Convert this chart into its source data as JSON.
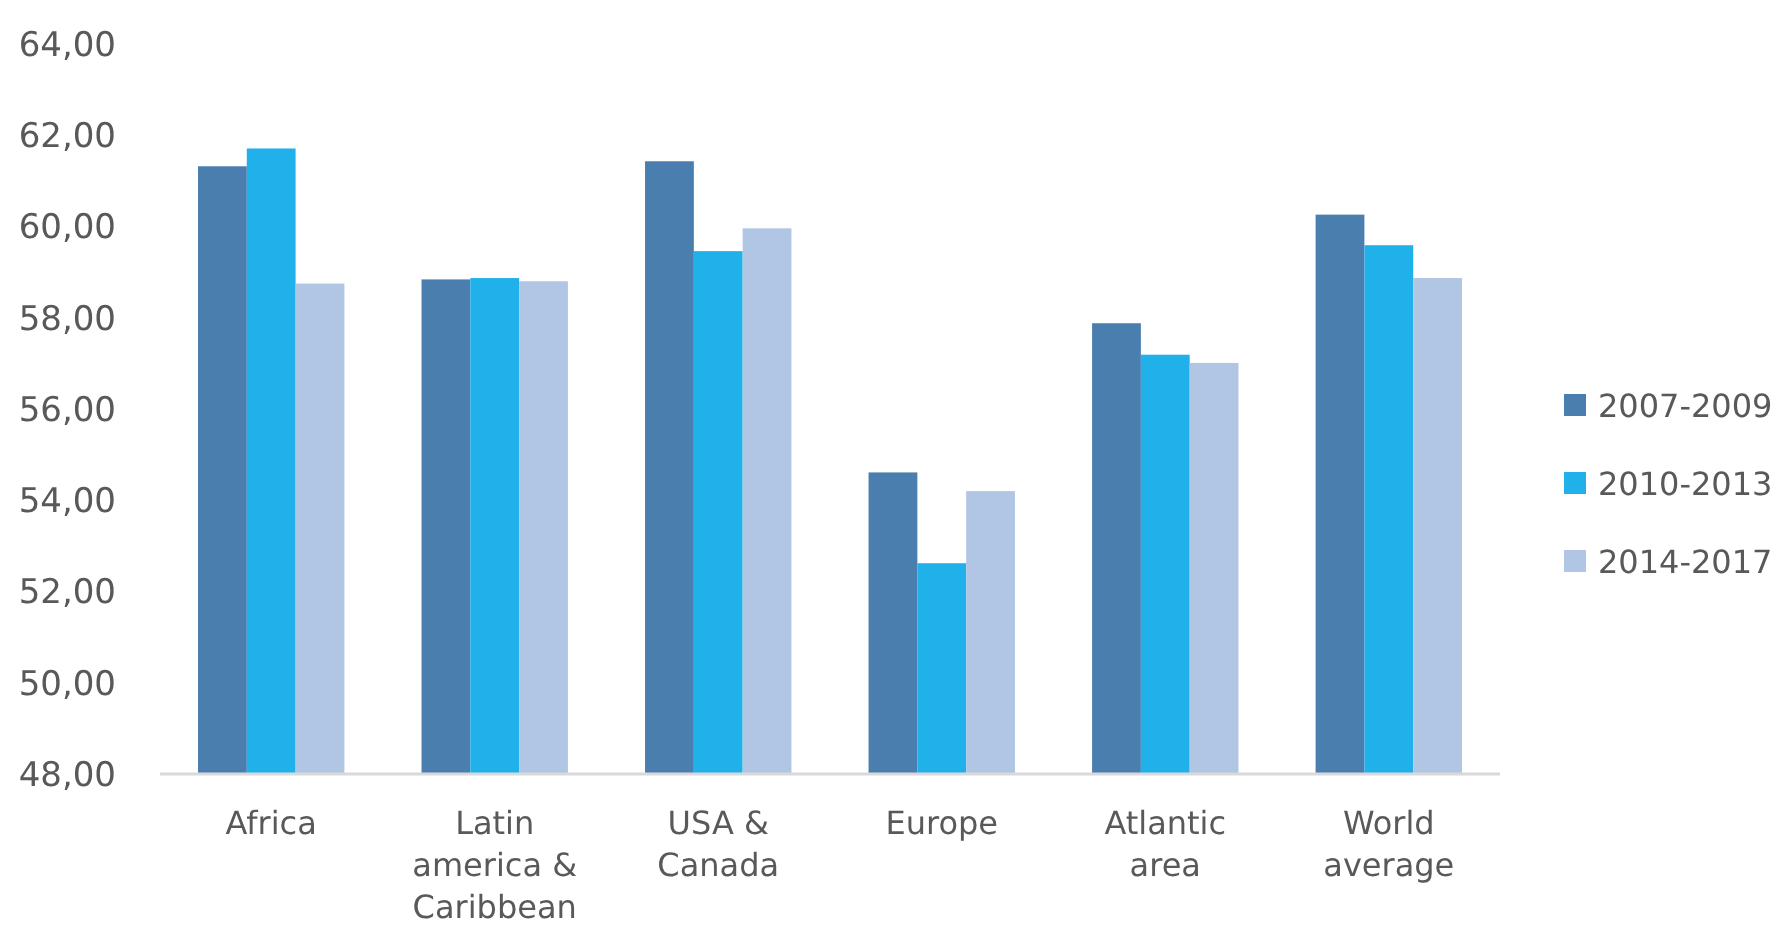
{
  "chart_data": {
    "type": "bar",
    "categories": [
      "Africa",
      "Latin america & Caribbean",
      "USA & Canada",
      "Europe",
      "Atlantic area",
      "World average"
    ],
    "series": [
      {
        "name": "2007-2009",
        "color": "#4a7eae",
        "values": [
          61.32,
          58.84,
          61.43,
          54.61,
          57.88,
          60.26
        ]
      },
      {
        "name": "2010-2013",
        "color": "#21b1ea",
        "values": [
          61.71,
          58.87,
          59.46,
          52.62,
          57.19,
          59.59
        ]
      },
      {
        "name": "2014-2017",
        "color": "#b0c6e4",
        "values": [
          58.75,
          58.8,
          59.96,
          54.2,
          57.01,
          58.87
        ]
      }
    ],
    "ylim": [
      48,
      64
    ],
    "yticks": [
      {
        "value": 48,
        "label": "48,00"
      },
      {
        "value": 50,
        "label": "50,00"
      },
      {
        "value": 52,
        "label": "52,00"
      },
      {
        "value": 54,
        "label": "54,00"
      },
      {
        "value": 56,
        "label": "56,00"
      },
      {
        "value": 58,
        "label": "58,00"
      },
      {
        "value": 60,
        "label": "60,00"
      },
      {
        "value": 62,
        "label": "62,00"
      },
      {
        "value": 64,
        "label": "64,00"
      }
    ],
    "grid": false,
    "legend": "right"
  }
}
